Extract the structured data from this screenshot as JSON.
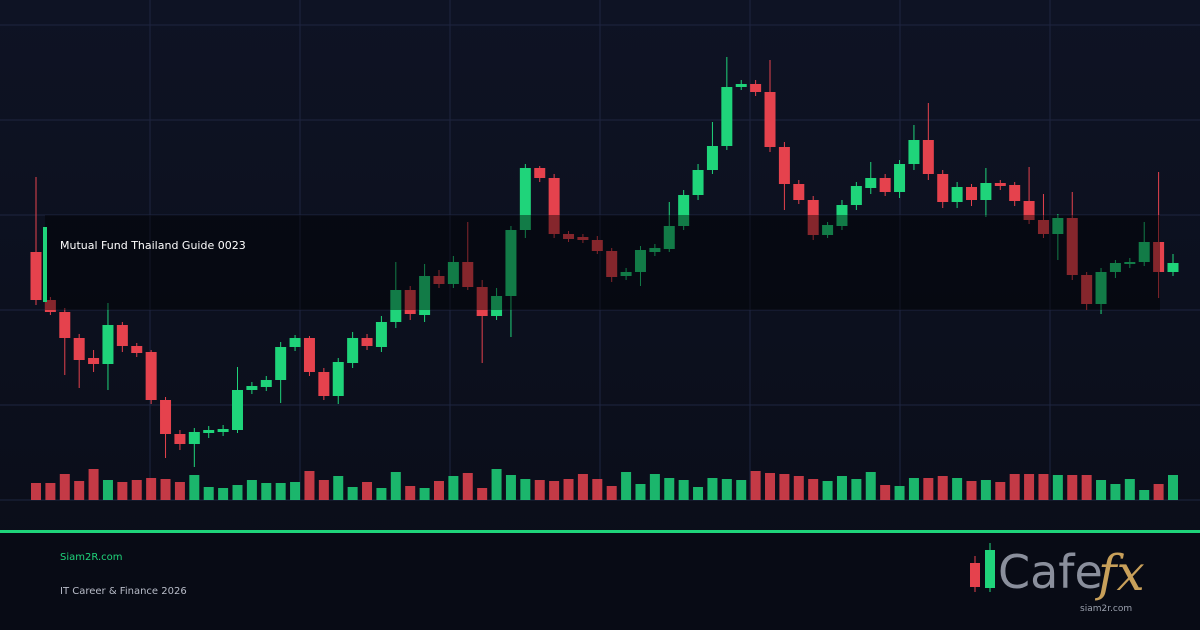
{
  "banner": {
    "title": "Mutual Fund Thailand Guide 0023"
  },
  "chart_data": {
    "type": "candlestick",
    "ylim": [
      0,
      500
    ],
    "up_color": "#1fd47a",
    "down_color": "#e5424d",
    "open": [
      248,
      200,
      188,
      162,
      142,
      136,
      175,
      154,
      148,
      100,
      66,
      56,
      67,
      68,
      70,
      110,
      113,
      120,
      153,
      162,
      128,
      104,
      137,
      162,
      153,
      178,
      210,
      185,
      224,
      216,
      238,
      213,
      184,
      204,
      270,
      332,
      322,
      266,
      263,
      260,
      249,
      224,
      228,
      248,
      251,
      274,
      305,
      330,
      354,
      413,
      416,
      408,
      353,
      316,
      300,
      265,
      274,
      295,
      312,
      322,
      308,
      336,
      360,
      326,
      298,
      313,
      300,
      317,
      315,
      299,
      280,
      266,
      282,
      225,
      196,
      228,
      236,
      238,
      258,
      228
    ],
    "high": [
      323,
      203,
      192,
      166,
      150,
      197,
      178,
      157,
      150,
      103,
      70,
      72,
      74,
      75,
      133,
      118,
      124,
      158,
      165,
      164,
      132,
      142,
      168,
      166,
      184,
      238,
      214,
      236,
      230,
      244,
      278,
      220,
      212,
      274,
      336,
      334,
      326,
      269,
      266,
      264,
      252,
      232,
      254,
      256,
      298,
      310,
      336,
      378,
      443,
      420,
      420,
      440,
      358,
      320,
      304,
      278,
      300,
      318,
      338,
      326,
      340,
      375,
      397,
      330,
      318,
      316,
      332,
      320,
      318,
      333,
      306,
      286,
      308,
      228,
      232,
      240,
      242,
      278,
      328,
      246
    ],
    "low": [
      195,
      185,
      125,
      112,
      128,
      110,
      148,
      143,
      96,
      42,
      50,
      33,
      62,
      64,
      67,
      106,
      109,
      97,
      149,
      124,
      100,
      96,
      132,
      150,
      148,
      172,
      180,
      178,
      212,
      212,
      210,
      137,
      180,
      163,
      262,
      318,
      262,
      258,
      257,
      246,
      218,
      220,
      214,
      244,
      248,
      270,
      300,
      326,
      350,
      410,
      404,
      348,
      290,
      296,
      260,
      262,
      270,
      290,
      306,
      304,
      302,
      330,
      320,
      292,
      292,
      294,
      283,
      310,
      294,
      276,
      262,
      240,
      220,
      190,
      186,
      222,
      232,
      234,
      202,
      224
    ],
    "close": [
      200,
      188,
      162,
      140,
      136,
      175,
      154,
      147,
      100,
      66,
      56,
      68,
      70,
      71,
      110,
      114,
      120,
      153,
      162,
      128,
      104,
      138,
      162,
      154,
      178,
      210,
      186,
      224,
      216,
      238,
      213,
      184,
      204,
      270,
      332,
      322,
      266,
      261,
      260,
      249,
      223,
      228,
      250,
      252,
      274,
      305,
      330,
      354,
      413,
      416,
      408,
      353,
      316,
      300,
      265,
      275,
      295,
      314,
      322,
      308,
      336,
      360,
      326,
      298,
      313,
      300,
      317,
      314,
      299,
      280,
      266,
      282,
      225,
      196,
      228,
      237,
      238,
      258,
      228,
      237
    ],
    "volume": [
      17,
      17,
      26,
      19,
      31,
      20,
      18,
      20,
      22,
      21,
      18,
      25,
      13,
      12,
      15,
      20,
      17,
      17,
      18,
      29,
      20,
      24,
      13,
      18,
      12,
      28,
      14,
      12,
      19,
      24,
      27,
      12,
      31,
      25,
      21,
      20,
      19,
      21,
      26,
      21,
      14,
      28,
      16,
      26,
      22,
      20,
      13,
      22,
      21,
      20,
      29,
      27,
      26,
      24,
      21,
      19,
      24,
      21,
      28,
      15,
      14,
      22,
      22,
      24,
      22,
      19,
      20,
      18,
      26,
      26,
      26,
      25,
      25,
      25,
      20,
      16,
      21,
      10,
      16,
      25
    ]
  },
  "footer": {
    "site": "Siam2R.com",
    "tagline": "IT Career & Finance 2026",
    "logo": {
      "word": "Cafe",
      "accent": "fx",
      "url": "siam2r.com"
    }
  }
}
